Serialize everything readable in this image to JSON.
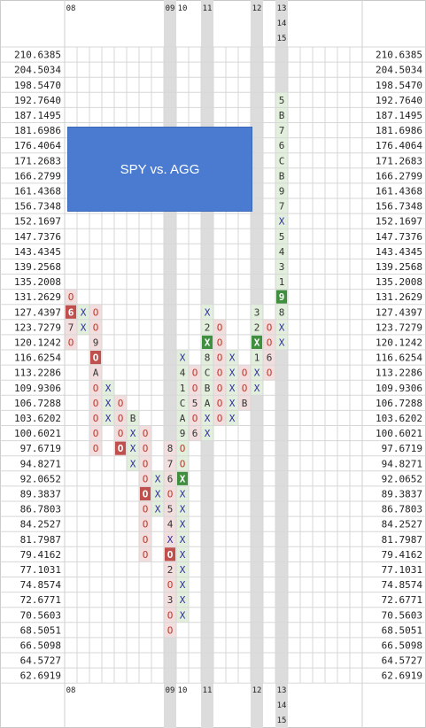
{
  "chart_data": {
    "type": "point-and-figure",
    "title": "SPY vs. AGG",
    "price_levels": [
      "210.6385",
      "204.5034",
      "198.5470",
      "192.7640",
      "187.1495",
      "181.6986",
      "176.4064",
      "171.2683",
      "166.2799",
      "161.4368",
      "156.7348",
      "152.1697",
      "147.7376",
      "143.4345",
      "139.2568",
      "135.2008",
      "131.2629",
      "127.4397",
      "123.7279",
      "120.1242",
      "116.6254",
      "113.2286",
      "109.9306",
      "106.7288",
      "103.6202",
      "100.6021",
      "97.6719",
      "94.8271",
      "92.0652",
      "89.3837",
      "86.7803",
      "84.2527",
      "81.7987",
      "79.4162",
      "77.1031",
      "74.8574",
      "72.6771",
      "70.5603",
      "68.5051",
      "66.5098",
      "64.5727",
      "62.6919"
    ],
    "year_labels": [
      {
        "col": 0,
        "lines": [
          "08"
        ]
      },
      {
        "col": 8,
        "lines": [
          "09"
        ]
      },
      {
        "col": 9,
        "lines": [
          "10"
        ]
      },
      {
        "col": 11,
        "lines": [
          "11"
        ]
      },
      {
        "col": 15,
        "lines": [
          "12"
        ]
      },
      {
        "col": 17,
        "lines": [
          "13",
          "14",
          "15"
        ]
      }
    ],
    "shaded_columns": [
      8,
      11,
      15,
      17
    ],
    "columns": [
      {
        "dir": "O",
        "top": 16,
        "cells": [
          "O",
          "6",
          "7",
          "O"
        ]
      },
      {
        "dir": "X",
        "top": 17,
        "cells": [
          "X",
          "X"
        ]
      },
      {
        "dir": "O",
        "top": 17,
        "cells": [
          "O",
          "O",
          "9",
          "O",
          "A",
          "O",
          "O",
          "O",
          "O",
          "O"
        ]
      },
      {
        "dir": "X",
        "top": 22,
        "cells": [
          "X",
          "X",
          "X"
        ]
      },
      {
        "dir": "O",
        "top": 23,
        "cells": [
          "O",
          "O",
          "O",
          "O"
        ]
      },
      {
        "dir": "X",
        "top": 24,
        "cells": [
          "B",
          "X",
          "X",
          "X"
        ]
      },
      {
        "dir": "O",
        "top": 25,
        "cells": [
          "O",
          "O",
          "O",
          "O",
          "O",
          "O",
          "O",
          "O",
          "O"
        ]
      },
      {
        "dir": "X",
        "top": 28,
        "cells": [
          "X",
          "X",
          "X"
        ]
      },
      {
        "dir": "O",
        "top": 26,
        "cells": [
          "8",
          "7",
          "6",
          "O",
          "5",
          "4",
          "X",
          "O",
          "2",
          "O",
          "3",
          "O",
          "O"
        ]
      },
      {
        "dir": "X",
        "top": 20,
        "cells": [
          "X",
          "4",
          "1",
          "C",
          "A",
          "9",
          "O",
          "O",
          "X",
          "X",
          "X",
          "X",
          "X",
          "X",
          "X",
          "X",
          "X",
          "X"
        ]
      },
      {
        "dir": "O",
        "top": 21,
        "cells": [
          "O",
          "O",
          "5",
          "O",
          "6"
        ]
      },
      {
        "dir": "X",
        "top": 17,
        "cells": [
          "X",
          "2",
          "X",
          "8",
          "C",
          "B",
          "A",
          "X",
          "X"
        ]
      },
      {
        "dir": "O",
        "top": 18,
        "cells": [
          "O",
          "O",
          "O",
          "O",
          "O",
          "O",
          "O"
        ]
      },
      {
        "dir": "X",
        "top": 20,
        "cells": [
          "X",
          "X",
          "X",
          "X",
          "X"
        ]
      },
      {
        "dir": "O",
        "top": 21,
        "cells": [
          "O",
          "O",
          "B"
        ]
      },
      {
        "dir": "X",
        "top": 17,
        "cells": [
          "3",
          "2",
          "X",
          "1",
          "X",
          "X"
        ]
      },
      {
        "dir": "O",
        "top": 18,
        "cells": [
          "O",
          "O",
          "6",
          "O"
        ]
      },
      {
        "dir": "X",
        "top": 3,
        "cells": [
          "5",
          "B",
          "7",
          "6",
          "C",
          "B",
          "9",
          "7",
          "X",
          "5",
          "4",
          "3",
          "1",
          "9",
          "8",
          "X",
          "X"
        ]
      }
    ],
    "highlights": [
      {
        "col": 0,
        "row": 17,
        "color": "#c0504d"
      },
      {
        "col": 2,
        "row": 20,
        "color": "#c0504d"
      },
      {
        "col": 4,
        "row": 26,
        "color": "#c0504d"
      },
      {
        "col": 6,
        "row": 29,
        "color": "#c0504d"
      },
      {
        "col": 8,
        "row": 33,
        "color": "#c0504d"
      },
      {
        "col": 9,
        "row": 28,
        "color": "#3f8f3f"
      },
      {
        "col": 11,
        "row": 19,
        "color": "#3f8f3f"
      },
      {
        "col": 15,
        "row": 19,
        "color": "#3f8f3f"
      },
      {
        "col": 17,
        "row": 16,
        "color": "#3f8f3f"
      }
    ],
    "x_color": "#2b2ba6",
    "o_color": "#c0392b",
    "falling_bg": "#f2dede",
    "rising_bg": "#e2efdc",
    "shade_color": "#dcdcdc"
  }
}
